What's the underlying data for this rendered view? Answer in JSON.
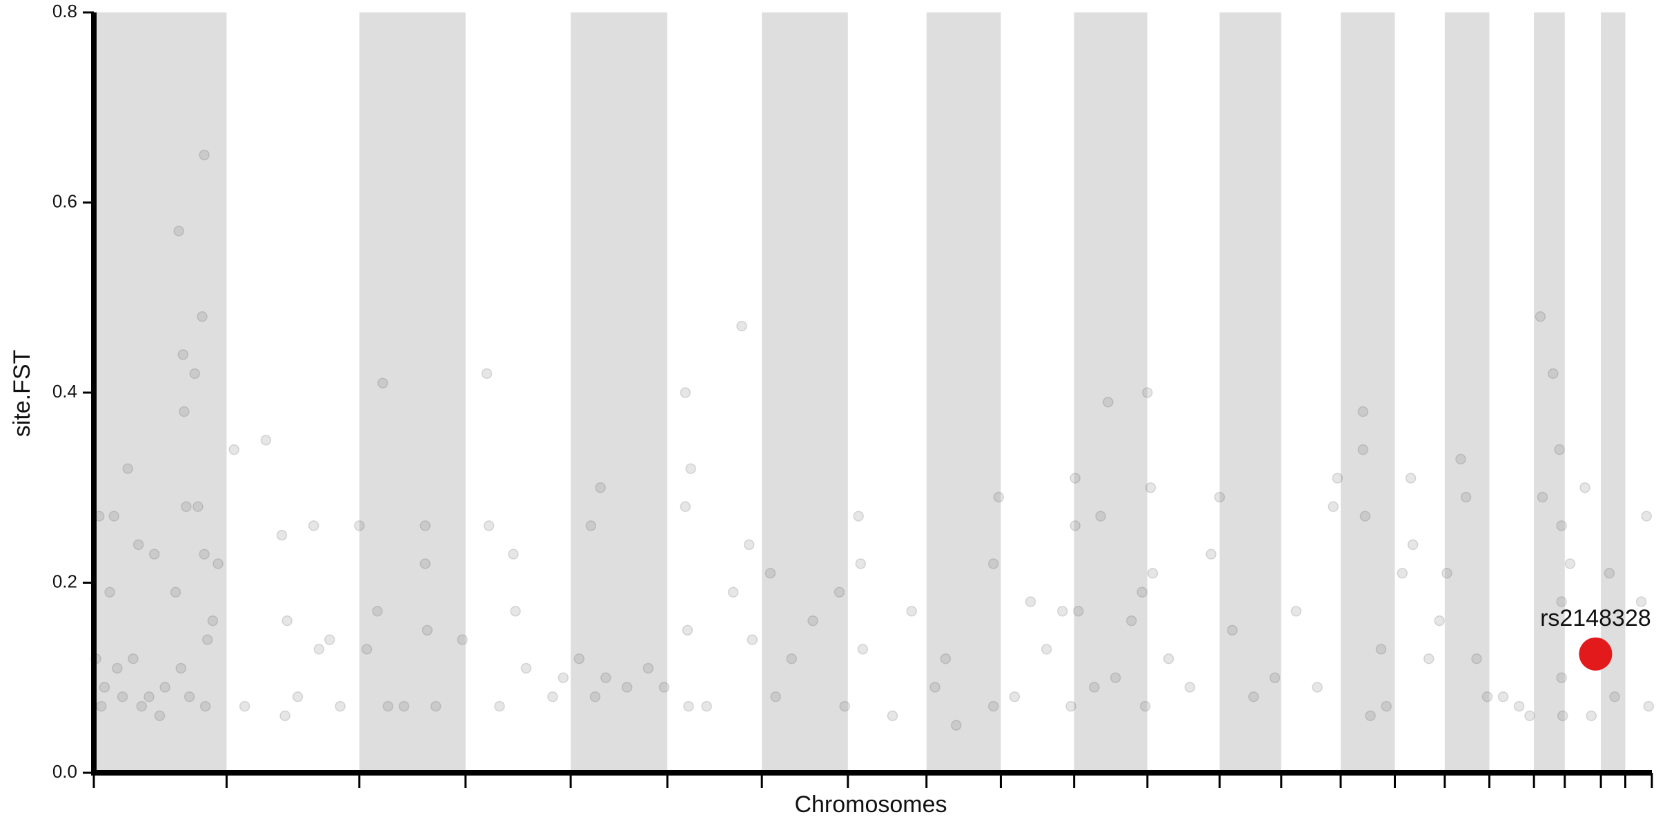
{
  "chart_data": {
    "type": "manhattan",
    "xlabel": "Chromosomes",
    "ylabel": "site.FST",
    "xlim": [
      0,
      1467
    ],
    "xticks": [
      0,
      125,
      250,
      350,
      449,
      540,
      629,
      710,
      784,
      854,
      923,
      992,
      1060,
      1118,
      1174,
      1225,
      1272,
      1314,
      1356,
      1385,
      1419,
      1442,
      1467
    ],
    "ylim": [
      0,
      0.8
    ],
    "yticks": [
      {
        "value": 0,
        "label": "0.0"
      },
      0.2,
      0.4,
      0.6,
      0.8
    ],
    "band_color": "#dedede",
    "points": {
      "color": "#555555",
      "x": [
        2,
        5,
        7,
        10,
        15,
        19,
        22,
        27,
        32,
        37,
        42,
        45,
        52,
        57,
        62,
        67,
        77,
        80,
        82,
        84,
        85,
        87,
        90,
        95,
        98,
        102,
        104,
        104,
        105,
        107,
        112,
        117,
        132,
        142,
        162,
        177,
        180,
        182,
        192,
        207,
        212,
        222,
        232,
        250,
        257,
        267,
        272,
        277,
        292,
        312,
        312,
        314,
        322,
        347,
        370,
        372,
        382,
        395,
        397,
        407,
        432,
        442,
        457,
        468,
        472,
        477,
        482,
        502,
        522,
        537,
        557,
        557,
        559,
        560,
        562,
        577,
        602,
        610,
        617,
        620,
        637,
        642,
        657,
        677,
        702,
        707,
        720,
        722,
        724,
        752,
        770,
        792,
        802,
        812,
        847,
        852,
        847,
        867,
        882,
        897,
        912,
        920,
        924,
        924,
        927,
        942,
        948,
        955,
        962,
        977,
        987,
        990,
        992,
        995,
        997,
        1012,
        1032,
        1052,
        1060,
        1072,
        1092,
        1112,
        1132,
        1152,
        1167,
        1171,
        1195,
        1195,
        1197,
        1202,
        1212,
        1217,
        1232,
        1240,
        1242,
        1257,
        1267,
        1274,
        1287,
        1292,
        1302,
        1312,
        1327,
        1342,
        1352,
        1362,
        1364,
        1374,
        1380,
        1382,
        1382,
        1382,
        1383,
        1390,
        1404,
        1410,
        1427,
        1432,
        1457,
        1462,
        1464
      ],
      "y": [
        0.12,
        0.27,
        0.07,
        0.09,
        0.19,
        0.27,
        0.11,
        0.08,
        0.32,
        0.12,
        0.24,
        0.07,
        0.08,
        0.23,
        0.06,
        0.09,
        0.19,
        0.57,
        0.11,
        0.44,
        0.38,
        0.28,
        0.08,
        0.42,
        0.28,
        0.48,
        0.65,
        0.23,
        0.07,
        0.14,
        0.16,
        0.22,
        0.34,
        0.07,
        0.35,
        0.25,
        0.06,
        0.16,
        0.08,
        0.26,
        0.13,
        0.14,
        0.07,
        0.26,
        0.13,
        0.17,
        0.41,
        0.07,
        0.07,
        0.26,
        0.22,
        0.15,
        0.07,
        0.14,
        0.42,
        0.26,
        0.07,
        0.23,
        0.17,
        0.11,
        0.08,
        0.1,
        0.12,
        0.26,
        0.08,
        0.3,
        0.1,
        0.09,
        0.11,
        0.09,
        0.4,
        0.28,
        0.15,
        0.07,
        0.32,
        0.07,
        0.19,
        0.47,
        0.24,
        0.14,
        0.21,
        0.08,
        0.12,
        0.16,
        0.19,
        0.07,
        0.27,
        0.22,
        0.13,
        0.06,
        0.17,
        0.09,
        0.12,
        0.05,
        0.07,
        0.29,
        0.22,
        0.08,
        0.18,
        0.13,
        0.17,
        0.07,
        0.31,
        0.26,
        0.17,
        0.09,
        0.27,
        0.39,
        0.1,
        0.16,
        0.19,
        0.07,
        0.4,
        0.3,
        0.21,
        0.12,
        0.09,
        0.23,
        0.29,
        0.15,
        0.08,
        0.1,
        0.17,
        0.09,
        0.28,
        0.31,
        0.38,
        0.34,
        0.27,
        0.06,
        0.13,
        0.07,
        0.21,
        0.31,
        0.24,
        0.12,
        0.16,
        0.21,
        0.33,
        0.29,
        0.12,
        0.08,
        0.08,
        0.07,
        0.06,
        0.48,
        0.29,
        0.42,
        0.34,
        0.26,
        0.18,
        0.1,
        0.06,
        0.22,
        0.3,
        0.06,
        0.21,
        0.08,
        0.18,
        0.27,
        0.07
      ]
    },
    "highlight": {
      "label": "rs2148328",
      "x": 1414,
      "y": 0.125,
      "color": "#e31a1c"
    }
  }
}
